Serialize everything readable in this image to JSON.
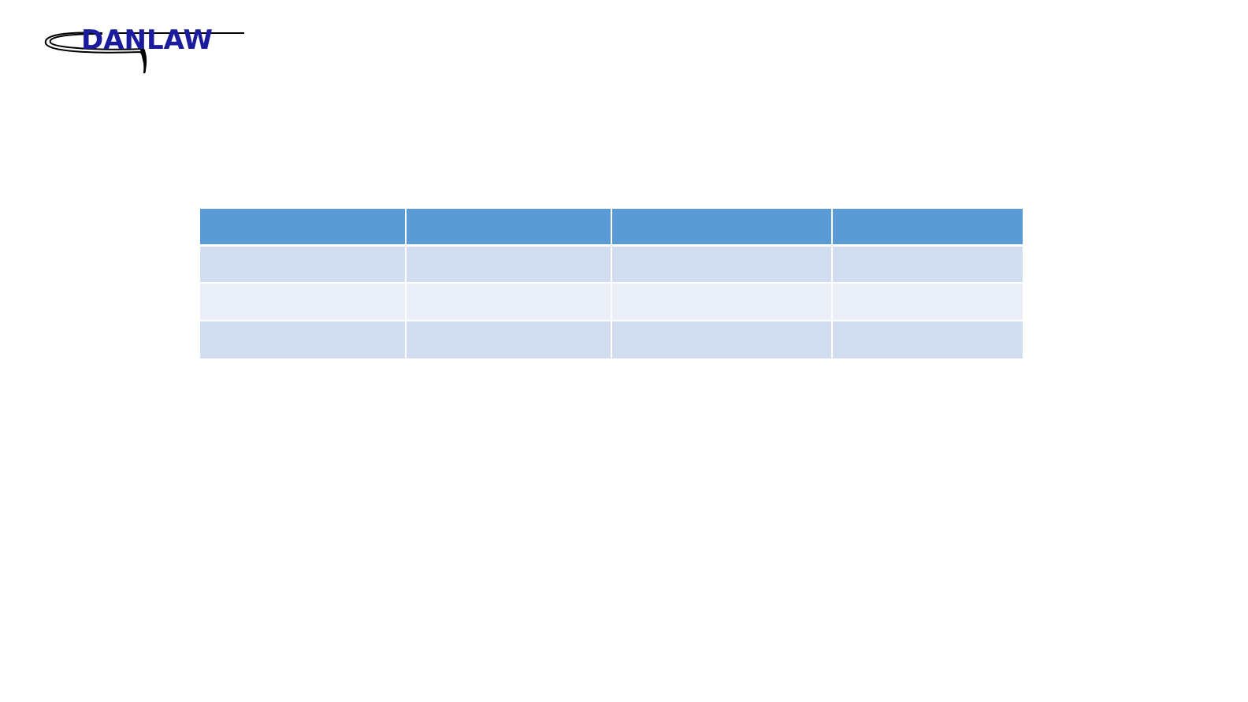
{
  "logo": {
    "text": "DANLAW"
  }
}
